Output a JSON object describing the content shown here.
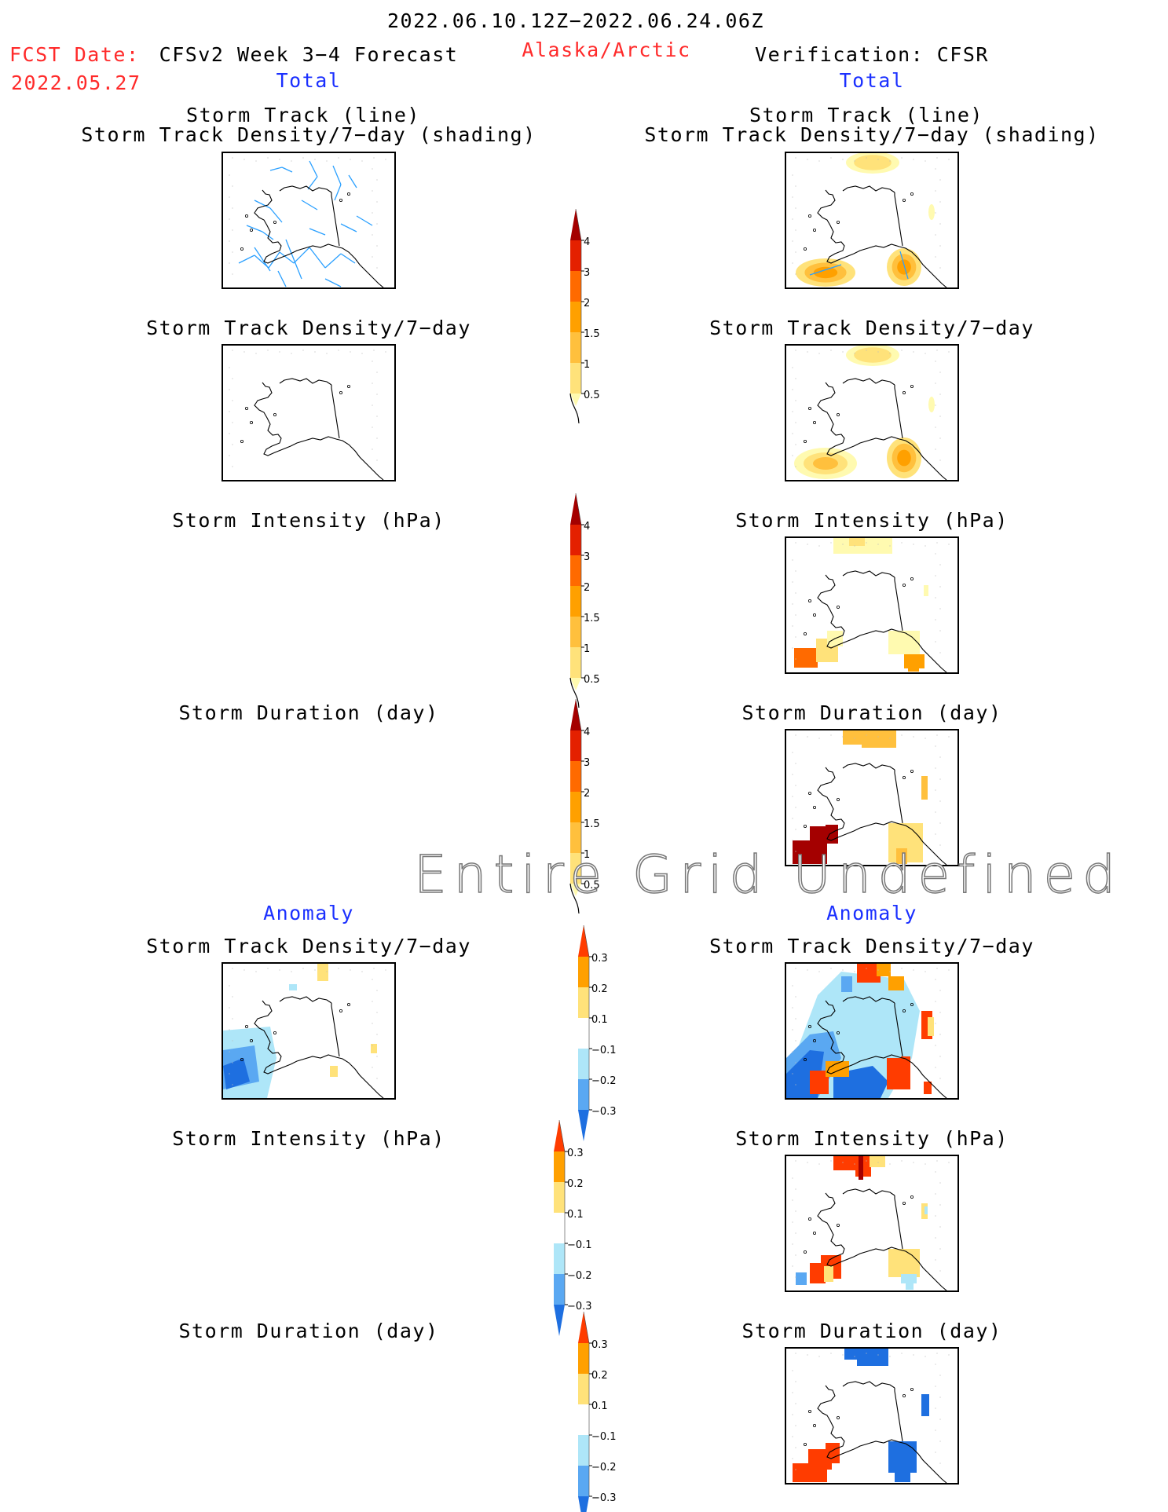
{
  "header": {
    "period": "2022.06.10.12Z−2022.06.24.06Z",
    "fcst_label": "FCST Date:",
    "fcst_date": "2022.05.27",
    "model": "CFSv2 Week 3−4 Forecast",
    "region": "Alaska/Arctic",
    "verification": "Verification: CFSR"
  },
  "sections": {
    "total_left": "Total",
    "total_right": "Total",
    "anomaly_left": "Anomaly",
    "anomaly_right": "Anomaly"
  },
  "titles": {
    "track_line": "Storm Track (line)",
    "track_shading": "Storm Track Density/7−day (shading)",
    "density": "Storm Track Density/7−day",
    "intensity": "Storm Intensity (hPa)",
    "duration": "Storm Duration (day)"
  },
  "watermark": "Entire Grid Undefined",
  "colors": {
    "total_scale": [
      "#fffab0",
      "#ffe27a",
      "#ffc03d",
      "#ffa000",
      "#ff6a00",
      "#e42000",
      "#a40000"
    ],
    "anomaly_scale": [
      "#1e6fe0",
      "#5aa8f2",
      "#aee6f8",
      "#ffffff",
      "#ffe27a",
      "#ffa000",
      "#ff3c00"
    ],
    "track_lines": "#2aa0ff"
  },
  "chart_data": [
    {
      "type": "heatmap",
      "name": "total-colorbar",
      "levels": [
        0.5,
        1,
        1.5,
        2,
        3,
        4
      ],
      "tick_labels": [
        "0.5",
        "1",
        "1.5",
        "2",
        "3",
        "4"
      ]
    },
    {
      "type": "heatmap",
      "name": "anomaly-colorbar",
      "levels": [
        -0.3,
        -0.2,
        -0.1,
        0.1,
        0.2,
        0.3
      ],
      "tick_labels": [
        "−0.3",
        "−0.2",
        "−0.1",
        "0.1",
        "0.2",
        "0.3"
      ]
    }
  ]
}
